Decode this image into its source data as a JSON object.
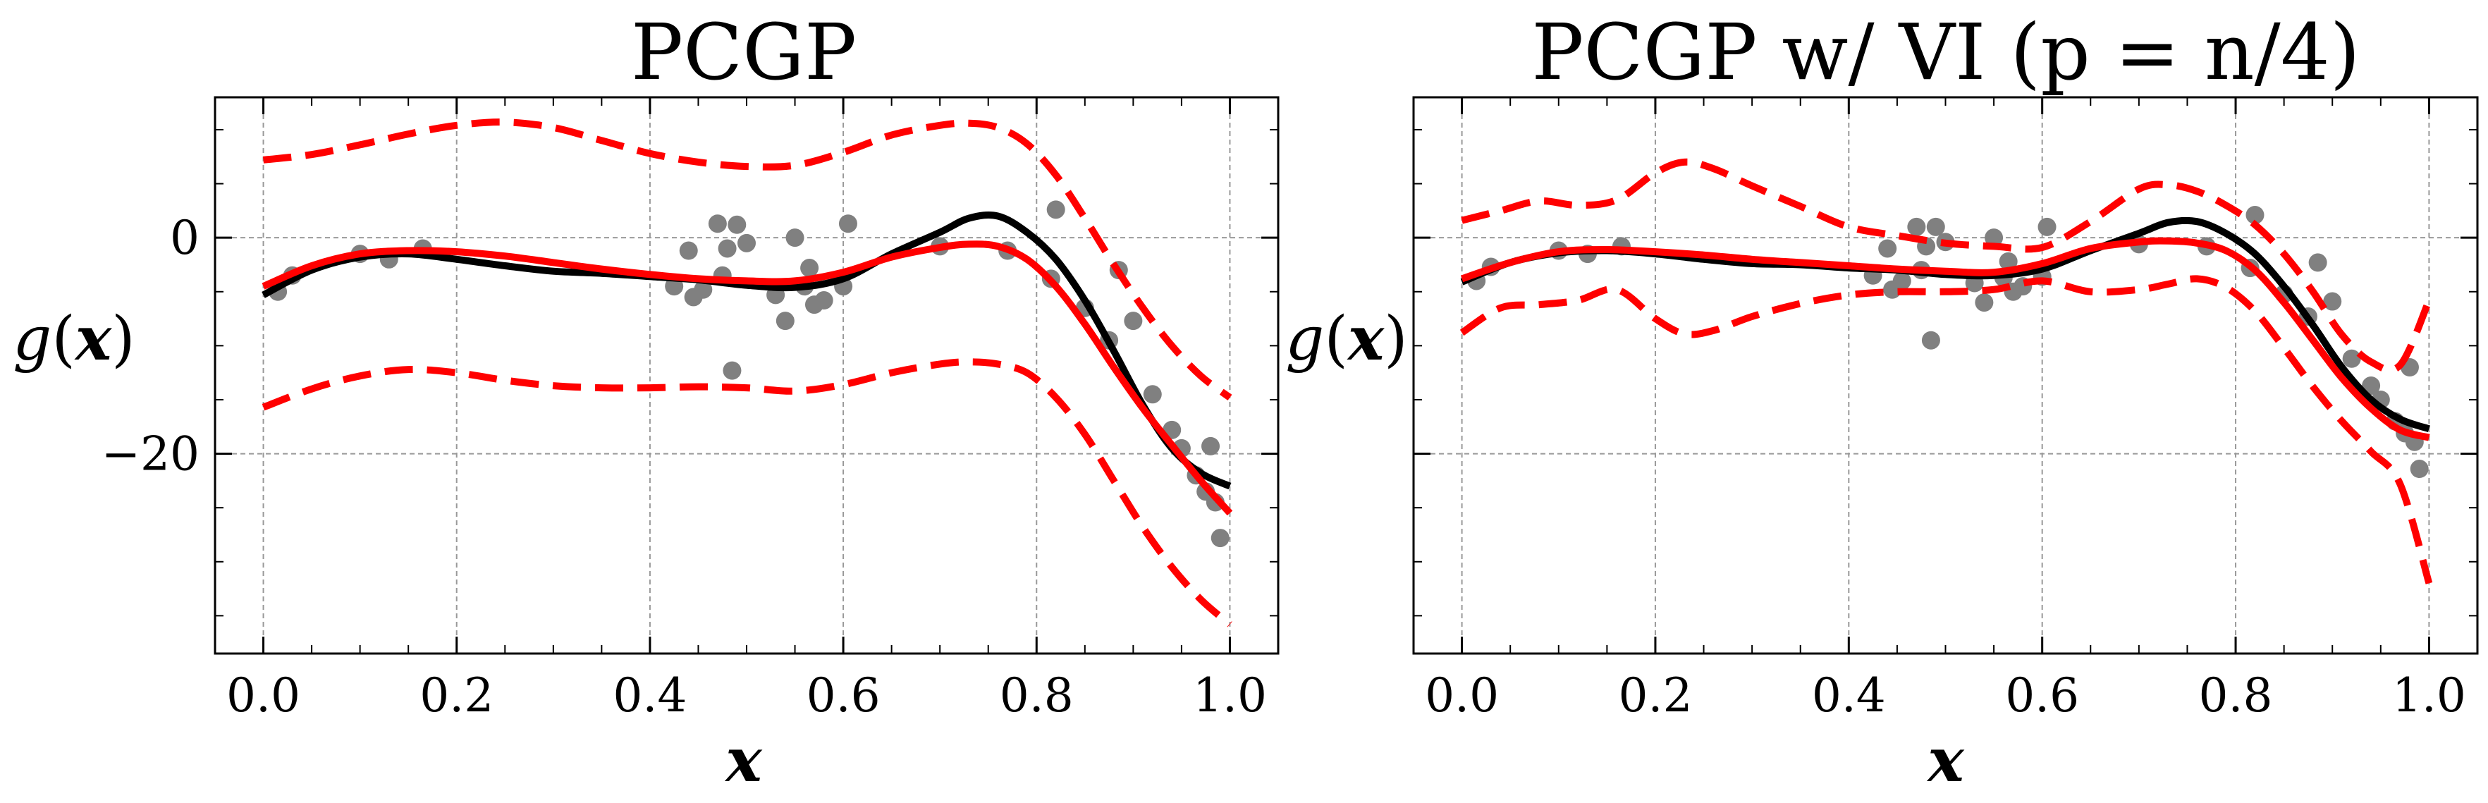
{
  "chart_data": [
    {
      "type": "line",
      "title": "PCGP",
      "xlabel": "x",
      "ylabel": "g(x)",
      "xlim": [
        -0.05,
        1.05
      ],
      "ylim": [
        -38.5,
        13
      ],
      "xticks": [
        0.0,
        0.2,
        0.4,
        0.6,
        0.8,
        1.0
      ],
      "xtick_labels": [
        "0.0",
        "0.2",
        "0.4",
        "0.6",
        "0.8",
        "1.0"
      ],
      "yticks": [
        0,
        -20
      ],
      "ytick_labels": [
        "0",
        "−20"
      ],
      "grid": true,
      "colors": {
        "observations": "#808080",
        "truth": "#000000",
        "prediction": "#ff0000",
        "interval": "#ff0000",
        "grid": "#999999"
      },
      "scatter": {
        "x": [
          0.015,
          0.03,
          0.1,
          0.13,
          0.165,
          0.425,
          0.44,
          0.445,
          0.455,
          0.47,
          0.475,
          0.48,
          0.485,
          0.49,
          0.5,
          0.53,
          0.54,
          0.55,
          0.56,
          0.565,
          0.57,
          0.58,
          0.6,
          0.605,
          0.7,
          0.77,
          0.815,
          0.82,
          0.85,
          0.875,
          0.885,
          0.9,
          0.92,
          0.94,
          0.95,
          0.965,
          0.975,
          0.98,
          0.985,
          0.99
        ],
        "y": [
          -5,
          -3.5,
          -1.5,
          -2,
          -1,
          -4.5,
          -1.2,
          -5.5,
          -4.8,
          1.3,
          -3.5,
          -1,
          -12.3,
          1.2,
          -0.5,
          -5.3,
          -7.7,
          0,
          -4.5,
          -2.8,
          -6.2,
          -5.8,
          -4.5,
          1.3,
          -0.8,
          -1.2,
          -3.8,
          2.6,
          -6.5,
          -9.5,
          -3,
          -7.7,
          -14.5,
          -17.8,
          -19.5,
          -22,
          -23.5,
          -19.3,
          -24.5,
          -27.8
        ]
      },
      "series": [
        {
          "role": "truth",
          "x": [
            0.0,
            0.05,
            0.1,
            0.15,
            0.2,
            0.25,
            0.3,
            0.35,
            0.4,
            0.45,
            0.5,
            0.55,
            0.6,
            0.65,
            0.7,
            0.73,
            0.76,
            0.79,
            0.82,
            0.85,
            0.88,
            0.91,
            0.94,
            0.97,
            1.0
          ],
          "y": [
            -5.3,
            -3.0,
            -1.8,
            -1.5,
            -2.0,
            -2.6,
            -3.1,
            -3.3,
            -3.6,
            -3.9,
            -4.4,
            -4.6,
            -3.8,
            -1.5,
            0.5,
            1.8,
            2.0,
            0.5,
            -2.0,
            -5.8,
            -10.5,
            -15.5,
            -19.5,
            -21.8,
            -23.0
          ]
        },
        {
          "role": "prediction",
          "x": [
            0.0,
            0.05,
            0.1,
            0.15,
            0.2,
            0.25,
            0.3,
            0.35,
            0.4,
            0.45,
            0.5,
            0.55,
            0.6,
            0.65,
            0.7,
            0.73,
            0.76,
            0.79,
            0.82,
            0.85,
            0.88,
            0.91,
            0.94,
            0.97,
            1.0
          ],
          "y": [
            -4.5,
            -2.6,
            -1.5,
            -1.2,
            -1.3,
            -1.7,
            -2.3,
            -2.9,
            -3.4,
            -3.8,
            -4.0,
            -4.0,
            -3.2,
            -1.8,
            -0.9,
            -0.6,
            -0.8,
            -2.0,
            -4.5,
            -8.0,
            -12.0,
            -15.8,
            -19.2,
            -22.5,
            -25.5
          ]
        },
        {
          "role": "upper-interval",
          "x": [
            0.0,
            0.05,
            0.1,
            0.15,
            0.2,
            0.25,
            0.3,
            0.35,
            0.4,
            0.45,
            0.5,
            0.55,
            0.6,
            0.65,
            0.7,
            0.73,
            0.76,
            0.79,
            0.82,
            0.85,
            0.88,
            0.91,
            0.94,
            0.97,
            1.0
          ],
          "y": [
            7.2,
            7.7,
            8.6,
            9.6,
            10.4,
            10.7,
            10.2,
            9.0,
            7.8,
            7.0,
            6.6,
            6.7,
            7.9,
            9.5,
            10.4,
            10.6,
            10.2,
            8.7,
            5.8,
            1.8,
            -2.5,
            -6.5,
            -10.0,
            -12.8,
            -14.8
          ]
        },
        {
          "role": "lower-interval",
          "x": [
            0.0,
            0.05,
            0.1,
            0.15,
            0.2,
            0.25,
            0.3,
            0.35,
            0.4,
            0.45,
            0.5,
            0.55,
            0.6,
            0.65,
            0.7,
            0.73,
            0.76,
            0.79,
            0.82,
            0.85,
            0.88,
            0.91,
            0.94,
            0.97,
            1.0
          ],
          "y": [
            -15.7,
            -14.0,
            -12.8,
            -12.2,
            -12.5,
            -13.2,
            -13.7,
            -13.9,
            -13.9,
            -13.8,
            -13.9,
            -14.2,
            -13.6,
            -12.5,
            -11.7,
            -11.5,
            -11.7,
            -12.5,
            -14.8,
            -18.2,
            -22.5,
            -26.8,
            -30.5,
            -33.5,
            -35.8
          ]
        }
      ]
    },
    {
      "type": "line",
      "title": "PCGP w/ VI (p = n/4)",
      "xlabel": "x",
      "ylabel": "g(x)",
      "xlim": [
        -0.05,
        1.05
      ],
      "ylim": [
        -38.5,
        13
      ],
      "xticks": [
        0.0,
        0.2,
        0.4,
        0.6,
        0.8,
        1.0
      ],
      "xtick_labels": [
        "0.0",
        "0.2",
        "0.4",
        "0.6",
        "0.8",
        "1.0"
      ],
      "yticks": [
        0,
        -20
      ],
      "ytick_labels": [
        "",
        ""
      ],
      "grid": true,
      "colors": {
        "observations": "#808080",
        "truth": "#000000",
        "prediction": "#ff0000",
        "interval": "#ff0000",
        "grid": "#999999"
      },
      "scatter": {
        "x": [
          0.015,
          0.03,
          0.1,
          0.13,
          0.165,
          0.425,
          0.44,
          0.445,
          0.455,
          0.47,
          0.475,
          0.48,
          0.485,
          0.49,
          0.5,
          0.53,
          0.54,
          0.55,
          0.56,
          0.565,
          0.57,
          0.58,
          0.6,
          0.605,
          0.7,
          0.77,
          0.815,
          0.82,
          0.85,
          0.875,
          0.885,
          0.9,
          0.92,
          0.94,
          0.95,
          0.965,
          0.975,
          0.98,
          0.985,
          0.99
        ],
        "y": [
          -4,
          -2.7,
          -1.2,
          -1.5,
          -0.8,
          -3.5,
          -1.0,
          -4.8,
          -4.0,
          1.0,
          -3.0,
          -0.8,
          -9.5,
          1.0,
          -0.4,
          -4.2,
          -6.0,
          0,
          -3.7,
          -2.2,
          -5.0,
          -4.5,
          -3.6,
          1.0,
          -0.6,
          -0.8,
          -2.8,
          2.1,
          -5.2,
          -7.3,
          -2.3,
          -5.9,
          -11.2,
          -13.7,
          -15.0,
          -17.0,
          -18.1,
          -12.0,
          -18.9,
          -21.4
        ]
      },
      "series": [
        {
          "role": "truth",
          "x": [
            0.0,
            0.05,
            0.1,
            0.15,
            0.2,
            0.25,
            0.3,
            0.35,
            0.4,
            0.45,
            0.5,
            0.55,
            0.6,
            0.65,
            0.7,
            0.73,
            0.76,
            0.79,
            0.82,
            0.85,
            0.88,
            0.91,
            0.94,
            0.97,
            1.0
          ],
          "y": [
            -4.1,
            -2.3,
            -1.4,
            -1.2,
            -1.5,
            -2.0,
            -2.4,
            -2.5,
            -2.8,
            -3.0,
            -3.4,
            -3.5,
            -2.9,
            -1.2,
            0.4,
            1.4,
            1.5,
            0.4,
            -1.5,
            -4.5,
            -8.1,
            -12.0,
            -15.0,
            -16.8,
            -17.7
          ]
        },
        {
          "role": "prediction",
          "x": [
            0.0,
            0.05,
            0.1,
            0.15,
            0.2,
            0.25,
            0.3,
            0.35,
            0.4,
            0.45,
            0.5,
            0.55,
            0.6,
            0.65,
            0.7,
            0.73,
            0.76,
            0.79,
            0.82,
            0.85,
            0.88,
            0.91,
            0.94,
            0.97,
            1.0
          ],
          "y": [
            -3.8,
            -2.3,
            -1.3,
            -1.1,
            -1.3,
            -1.6,
            -2.0,
            -2.3,
            -2.6,
            -2.9,
            -3.1,
            -3.2,
            -2.4,
            -1.0,
            -0.4,
            -0.3,
            -0.5,
            -1.2,
            -3.0,
            -6.0,
            -9.5,
            -13.0,
            -15.8,
            -17.8,
            -18.5
          ]
        },
        {
          "role": "upper-interval",
          "x": [
            0.0,
            0.04,
            0.08,
            0.12,
            0.16,
            0.2,
            0.23,
            0.26,
            0.3,
            0.35,
            0.4,
            0.45,
            0.5,
            0.55,
            0.6,
            0.65,
            0.7,
            0.73,
            0.76,
            0.79,
            0.82,
            0.85,
            0.88,
            0.91,
            0.94,
            0.97,
            1.0
          ],
          "y": [
            1.6,
            2.5,
            3.4,
            3.0,
            3.5,
            6.0,
            7.0,
            6.4,
            4.8,
            2.9,
            1.0,
            0.2,
            -0.5,
            -0.8,
            -0.9,
            1.5,
            4.5,
            4.9,
            4.3,
            3.0,
            1.2,
            -1.5,
            -5.0,
            -9.0,
            -11.5,
            -11.8,
            -5.8
          ]
        },
        {
          "role": "lower-interval",
          "x": [
            0.0,
            0.04,
            0.08,
            0.12,
            0.16,
            0.2,
            0.23,
            0.26,
            0.3,
            0.35,
            0.4,
            0.45,
            0.5,
            0.55,
            0.6,
            0.65,
            0.7,
            0.73,
            0.76,
            0.79,
            0.82,
            0.85,
            0.88,
            0.91,
            0.94,
            0.97,
            1.0
          ],
          "y": [
            -8.8,
            -6.5,
            -6.2,
            -5.8,
            -4.8,
            -7.5,
            -8.9,
            -8.6,
            -7.3,
            -6.1,
            -5.3,
            -5.0,
            -5.0,
            -4.8,
            -4.0,
            -5.0,
            -4.8,
            -4.3,
            -3.8,
            -4.6,
            -6.8,
            -10.2,
            -13.8,
            -17.0,
            -19.8,
            -22.8,
            -32.0
          ]
        }
      ]
    }
  ]
}
